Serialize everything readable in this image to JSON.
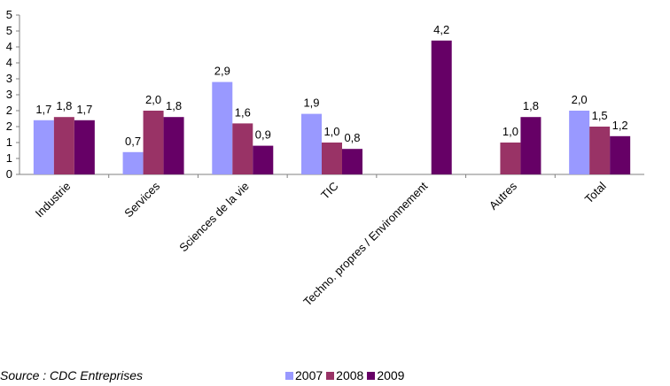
{
  "source_text": "Source : CDC Entreprises",
  "colors": {
    "2007": "#9999ff",
    "2008": "#993366",
    "2009": "#660066"
  },
  "chart_data": {
    "type": "bar",
    "categories": [
      "Industrie",
      "Services",
      "Sciences de la vie",
      "TIC",
      "Techno. propres / Environnement",
      "Autres",
      "Total"
    ],
    "y_tick_labels": [
      "0",
      "1",
      "1",
      "2",
      "2",
      "3",
      "3",
      "4",
      "4",
      "5",
      "5"
    ],
    "ylim": [
      0,
      5
    ],
    "grid": false,
    "legend_position": "bottom",
    "series": [
      {
        "name": "2007",
        "values": [
          1.7,
          0.7,
          2.9,
          1.9,
          null,
          null,
          2.0
        ],
        "labels": [
          "1,7",
          "0,7",
          "2,9",
          "1,9",
          "",
          "",
          "2,0"
        ]
      },
      {
        "name": "2008",
        "values": [
          1.8,
          2.0,
          1.6,
          1.0,
          null,
          1.0,
          1.5
        ],
        "labels": [
          "1,8",
          "2,0",
          "1,6",
          "1,0",
          "",
          "1,0",
          "1,5"
        ]
      },
      {
        "name": "2009",
        "values": [
          1.7,
          1.8,
          0.9,
          0.8,
          4.2,
          1.8,
          1.2
        ],
        "labels": [
          "1,7",
          "1,8",
          "0,9",
          "0,8",
          "4,2",
          "1,8",
          "1,2"
        ]
      }
    ]
  }
}
